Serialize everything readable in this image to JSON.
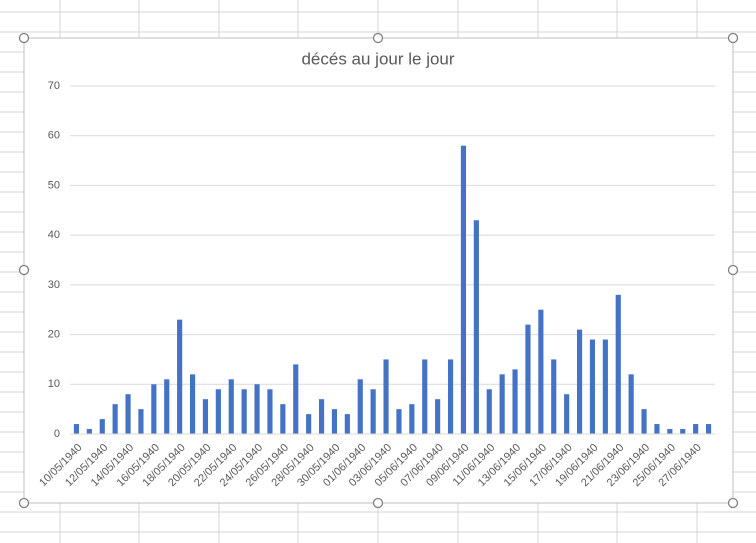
{
  "chart_data": {
    "type": "bar",
    "title": "décés au jour le jour",
    "categories": [
      "10/05/1940",
      null,
      "12/05/1940",
      null,
      "14/05/1940",
      null,
      "16/05/1940",
      null,
      "18/05/1940",
      null,
      "20/05/1940",
      null,
      "22/05/1940",
      null,
      "24/05/1940",
      null,
      "26/05/1940",
      null,
      "28/05/1940",
      null,
      "30/05/1940",
      null,
      "01/06/1940",
      null,
      "03/06/1940",
      null,
      "05/06/1940",
      null,
      "07/06/1940",
      null,
      "09/06/1940",
      null,
      "11/06/1940",
      null,
      "13/06/1940",
      null,
      "15/06/1940",
      null,
      "17/06/1940",
      null,
      "19/06/1940",
      null,
      "21/06/1940",
      null,
      "23/06/1940",
      null,
      "25/06/1940",
      null,
      "27/06/1940",
      null
    ],
    "values": [
      2,
      1,
      3,
      6,
      8,
      5,
      10,
      11,
      23,
      12,
      7,
      9,
      11,
      9,
      10,
      9,
      6,
      14,
      4,
      7,
      5,
      4,
      11,
      9,
      15,
      5,
      6,
      15,
      7,
      15,
      58,
      43,
      9,
      12,
      13,
      22,
      25,
      15,
      8,
      21,
      19,
      19,
      28,
      12,
      5,
      2,
      1,
      1,
      2,
      2
    ],
    "color": "#4472c4",
    "ylim": [
      0,
      70
    ],
    "yticks": [
      0,
      10,
      20,
      30,
      40,
      50,
      60,
      70
    ],
    "grid": true
  }
}
